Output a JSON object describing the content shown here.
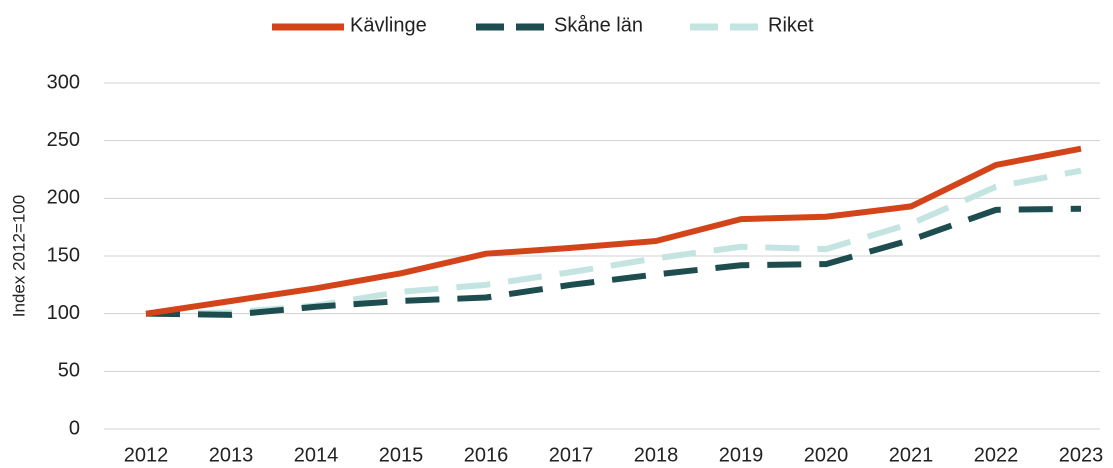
{
  "chart_data": {
    "type": "line",
    "y_label": "Index 2012=100",
    "categories": [
      "2012",
      "2013",
      "2014",
      "2015",
      "2016",
      "2017",
      "2018",
      "2019",
      "2020",
      "2021",
      "2022",
      "2023"
    ],
    "series": [
      {
        "name": "Kävlinge",
        "color": "#d4441a",
        "dash": "solid",
        "values": [
          100,
          111,
          122,
          135,
          152,
          157,
          163,
          182,
          184,
          193,
          229,
          243
        ]
      },
      {
        "name": "Skåne län",
        "color": "#1e4d4f",
        "dash": "dashed",
        "values": [
          100,
          99,
          106,
          111,
          114,
          125,
          134,
          142,
          143,
          164,
          190,
          191
        ]
      },
      {
        "name": "Riket",
        "color": "#c3e4e0",
        "dash": "dashed",
        "values": [
          100,
          101,
          107,
          119,
          125,
          136,
          148,
          158,
          156,
          178,
          210,
          224
        ]
      }
    ],
    "ylim": [
      0,
      300
    ],
    "yticks": [
      0,
      50,
      100,
      150,
      200,
      250,
      300
    ],
    "grid": true,
    "legend": "top"
  }
}
